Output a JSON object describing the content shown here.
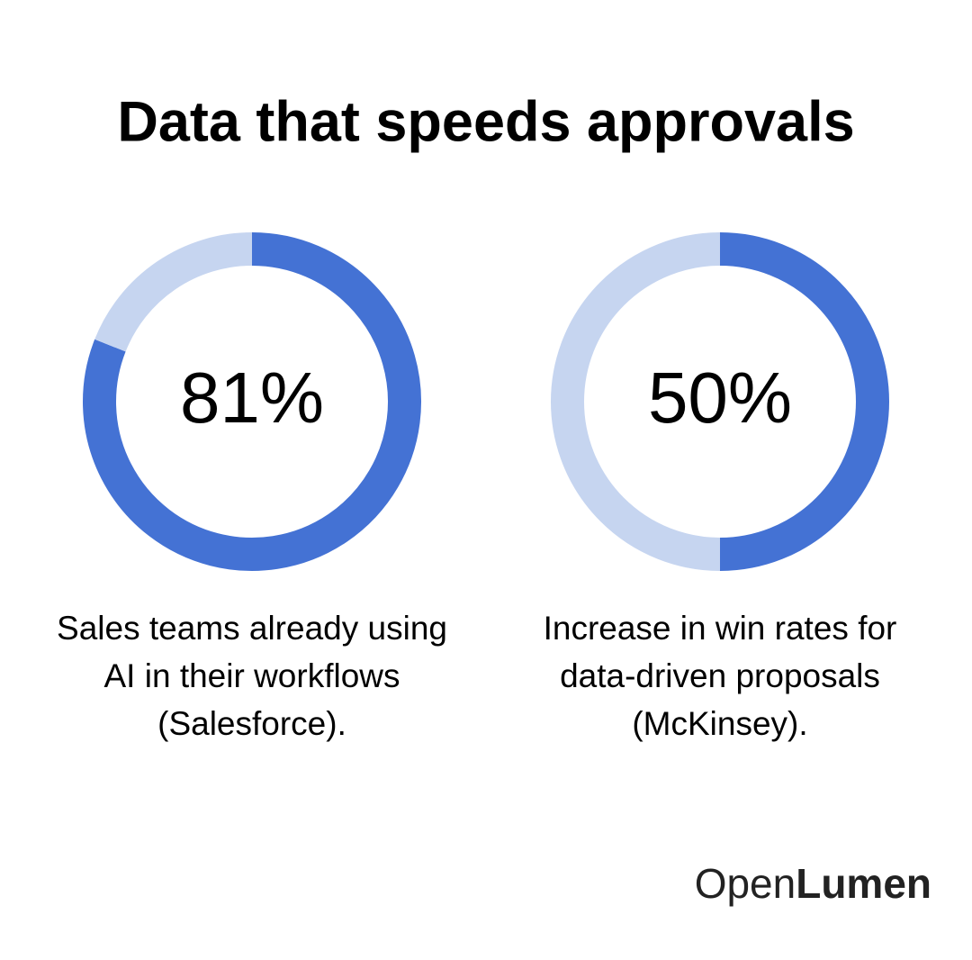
{
  "title": "Data that speeds approvals",
  "chart_data": [
    {
      "type": "donut",
      "values": [
        81,
        19
      ],
      "value_labels": [
        "81%",
        null
      ],
      "colors": [
        "#4472d4",
        "#c6d5f0"
      ],
      "caption": [
        "Sales teams already using",
        "AI in their workflows",
        "(Salesforce)."
      ]
    },
    {
      "type": "donut",
      "values": [
        50,
        50
      ],
      "value_labels": [
        "50%",
        null
      ],
      "colors": [
        "#4472d4",
        "#c6d5f0"
      ],
      "caption": [
        "Increase in win rates for",
        "data-driven proposals",
        "(McKinsey)."
      ]
    }
  ],
  "brand": {
    "light": "Open",
    "bold": "Lumen"
  }
}
